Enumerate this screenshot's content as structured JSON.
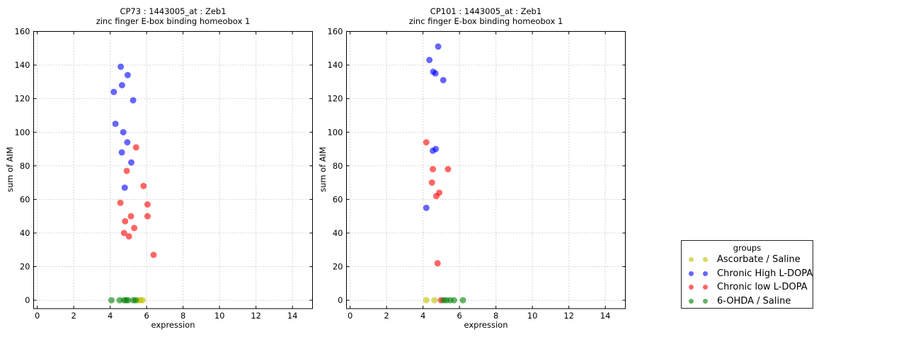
{
  "chart_data": [
    {
      "type": "scatter",
      "title_line1": "CP73 : 1443005_at : Zeb1",
      "title_line2": "zinc finger E-box binding homeobox 1",
      "xlabel": "expression",
      "ylabel": "sum of AIM",
      "xlim": [
        0,
        15
      ],
      "ylim": [
        0,
        160
      ],
      "xticks": [
        0,
        2,
        4,
        6,
        8,
        10,
        12,
        14
      ],
      "yticks": [
        0,
        20,
        40,
        60,
        80,
        100,
        120,
        140,
        160
      ],
      "grid": "dotted",
      "legend_position": "outside-right",
      "series": [
        {
          "name": "Ascorbate / Saline",
          "color": "#bfbf00",
          "points": [
            [
              5.55,
              0
            ],
            [
              5.67,
              0
            ],
            [
              5.78,
              0
            ]
          ]
        },
        {
          "name": "Chronic High L-DOPA",
          "color": "#0000ff",
          "points": [
            [
              4.2,
              124
            ],
            [
              4.29,
              105
            ],
            [
              4.58,
              139
            ],
            [
              4.64,
              88
            ],
            [
              4.65,
              128
            ],
            [
              4.72,
              100
            ],
            [
              4.8,
              67
            ],
            [
              4.94,
              94
            ],
            [
              4.96,
              134
            ],
            [
              5.16,
              82
            ],
            [
              5.26,
              119
            ]
          ]
        },
        {
          "name": "Chronic low L-DOPA",
          "color": "#ff0000",
          "points": [
            [
              4.56,
              58
            ],
            [
              4.76,
              40
            ],
            [
              4.82,
              47
            ],
            [
              4.91,
              77
            ],
            [
              5.03,
              38
            ],
            [
              5.14,
              50
            ],
            [
              5.32,
              43
            ],
            [
              5.42,
              91
            ],
            [
              5.83,
              68
            ],
            [
              6.05,
              57
            ],
            [
              6.05,
              50
            ],
            [
              6.38,
              27
            ]
          ]
        },
        {
          "name": "6-OHDA / Saline",
          "color": "#008000",
          "points": [
            [
              4.07,
              0
            ],
            [
              4.52,
              0
            ],
            [
              4.76,
              0
            ],
            [
              4.88,
              0
            ],
            [
              4.98,
              0
            ],
            [
              5.27,
              0
            ],
            [
              5.4,
              0
            ]
          ]
        }
      ]
    },
    {
      "type": "scatter",
      "title_line1": "CP101 : 1443005_at : Zeb1",
      "title_line2": "zinc finger E-box binding homeobox 1",
      "xlabel": "expression",
      "ylabel": "sum of AIM",
      "xlim": [
        0,
        15
      ],
      "ylim": [
        0,
        160
      ],
      "xticks": [
        0,
        2,
        4,
        6,
        8,
        10,
        12,
        14
      ],
      "yticks": [
        0,
        20,
        40,
        60,
        80,
        100,
        120,
        140,
        160
      ],
      "grid": "dotted",
      "legend_position": "outside-right",
      "series": [
        {
          "name": "Ascorbate / Saline",
          "color": "#bfbf00",
          "points": [
            [
              4.18,
              0
            ],
            [
              4.63,
              0
            ]
          ]
        },
        {
          "name": "Chronic High L-DOPA",
          "color": "#0000ff",
          "points": [
            [
              4.18,
              55
            ],
            [
              4.35,
              143
            ],
            [
              4.54,
              89
            ],
            [
              4.56,
              136
            ],
            [
              4.68,
              135
            ],
            [
              4.7,
              90
            ],
            [
              4.83,
              151
            ],
            [
              5.11,
              131
            ]
          ]
        },
        {
          "name": "Chronic low L-DOPA",
          "color": "#ff0000",
          "points": [
            [
              4.18,
              94
            ],
            [
              4.49,
              70
            ],
            [
              4.54,
              78
            ],
            [
              4.73,
              62
            ],
            [
              4.8,
              22
            ],
            [
              4.89,
              64
            ],
            [
              4.99,
              0
            ],
            [
              5.37,
              78
            ]
          ]
        },
        {
          "name": "6-OHDA / Saline",
          "color": "#008000",
          "points": [
            [
              5.13,
              0
            ],
            [
              5.28,
              0
            ],
            [
              5.48,
              0
            ],
            [
              5.7,
              0
            ],
            [
              6.19,
              0
            ]
          ]
        }
      ]
    }
  ],
  "legend": {
    "title": "groups",
    "entries": [
      {
        "label": "Ascorbate / Saline",
        "color": "#bfbf00"
      },
      {
        "label": "Chronic High L-DOPA",
        "color": "#0000ff"
      },
      {
        "label": "Chronic low L-DOPA",
        "color": "#ff0000"
      },
      {
        "label": "6-OHDA / Saline",
        "color": "#008000"
      }
    ]
  },
  "style": {
    "background": "#ffffff",
    "grid_color": "#aaaaaa",
    "frame_color": "#000000",
    "marker_opacity": 0.6
  }
}
